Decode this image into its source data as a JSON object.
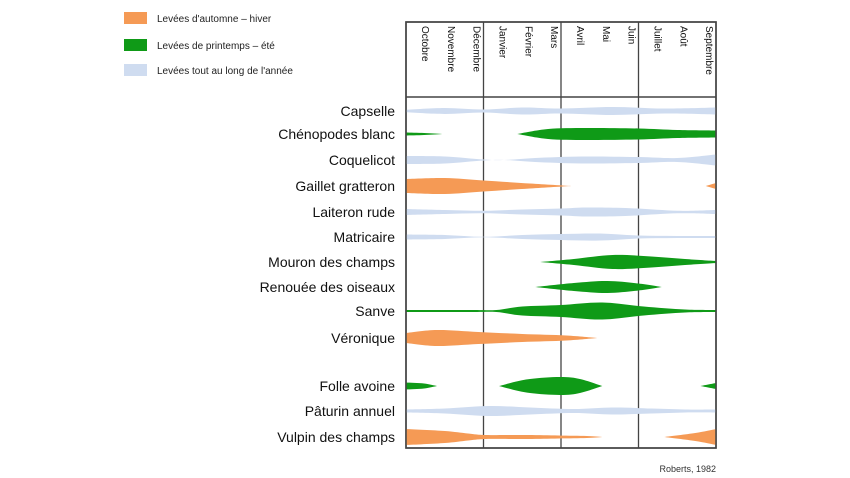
{
  "chart_data": {
    "type": "area",
    "title": "",
    "xlabel": "",
    "ylabel": "",
    "grid": true,
    "legend_placement": "top-left",
    "colors": {
      "automne_hiver": "#f59a55",
      "printemps_ete": "#0f9a17",
      "annee": "#cfdcf0",
      "grid": "#444444",
      "text": "#111111"
    },
    "legend": [
      {
        "key": "automne_hiver",
        "label": "Levées d'automne – hiver",
        "color": "#f59a55"
      },
      {
        "key": "printemps_ete",
        "label": "Levées de printemps – été",
        "color": "#0f9a17"
      },
      {
        "key": "annee",
        "label": "Levées tout au long de l'année",
        "color": "#cfdcf0"
      }
    ],
    "months": [
      "Octobre",
      "Novembre",
      "Décembre",
      "Janvier",
      "Février",
      "Mars",
      "Avril",
      "Mai",
      "Juin",
      "Juillet",
      "Août",
      "Septembre"
    ],
    "x_range": [
      0,
      12
    ],
    "species": [
      {
        "name": "Capselle",
        "bands": [
          {
            "type": "annee",
            "start": 0,
            "end": 12,
            "profile": [
              [
                0,
                2.5
              ],
              [
                1.5,
                6
              ],
              [
                3,
                3
              ],
              [
                4.5,
                7
              ],
              [
                6,
                5
              ],
              [
                8,
                8
              ],
              [
                10,
                5
              ],
              [
                12,
                7
              ]
            ]
          }
        ]
      },
      {
        "name": "Chénopodes blanc",
        "bands": [
          {
            "type": "printemps_ete",
            "start": 0,
            "end": 1.4,
            "profile": [
              [
                0,
                3
              ],
              [
                0.7,
                2
              ],
              [
                1.4,
                0
              ]
            ]
          },
          {
            "type": "printemps_ete",
            "start": 4.3,
            "end": 12,
            "profile": [
              [
                4.3,
                0
              ],
              [
                5.5,
                10
              ],
              [
                7,
                12
              ],
              [
                9,
                11
              ],
              [
                10.5,
                8
              ],
              [
                12,
                7
              ]
            ]
          }
        ]
      },
      {
        "name": "Coquelicot",
        "bands": [
          {
            "type": "annee",
            "start": 0,
            "end": 12,
            "profile": [
              [
                0,
                8
              ],
              [
                1.5,
                7
              ],
              [
                3,
                1
              ],
              [
                3.8,
                0
              ],
              [
                5,
                4
              ],
              [
                6.8,
                7
              ],
              [
                9,
                6
              ],
              [
                10.5,
                4
              ],
              [
                12,
                11
              ]
            ]
          }
        ]
      },
      {
        "name": "Gaillet gratteron",
        "bands": [
          {
            "type": "automne_hiver",
            "start": 0,
            "end": 6.4,
            "profile": [
              [
                0,
                14
              ],
              [
                1.5,
                16
              ],
              [
                3,
                11
              ],
              [
                4.8,
                5
              ],
              [
                6.4,
                0
              ]
            ]
          },
          {
            "type": "automne_hiver",
            "start": 11.6,
            "end": 12,
            "profile": [
              [
                11.6,
                0
              ],
              [
                12,
                6
              ]
            ]
          }
        ]
      },
      {
        "name": "Laiteron rude",
        "bands": [
          {
            "type": "annee",
            "start": 0,
            "end": 12,
            "profile": [
              [
                0,
                6
              ],
              [
                1.5,
                4
              ],
              [
                3,
                2.5
              ],
              [
                4.5,
                5
              ],
              [
                6,
                7
              ],
              [
                7,
                9
              ],
              [
                8.5,
                8
              ],
              [
                10.5,
                2.5
              ],
              [
                12,
                4
              ]
            ]
          }
        ]
      },
      {
        "name": "Matricaire",
        "bands": [
          {
            "type": "annee",
            "start": 0,
            "end": 12,
            "profile": [
              [
                0,
                5
              ],
              [
                1.5,
                4
              ],
              [
                3,
                0.5
              ],
              [
                4.5,
                4
              ],
              [
                6,
                6
              ],
              [
                7.5,
                7
              ],
              [
                9,
                3
              ],
              [
                10.5,
                2
              ],
              [
                12,
                2
              ]
            ]
          }
        ]
      },
      {
        "name": "Mouron des champs",
        "bands": [
          {
            "type": "printemps_ete",
            "start": 5.2,
            "end": 12,
            "profile": [
              [
                5.2,
                0
              ],
              [
                6.5,
                6
              ],
              [
                8,
                14
              ],
              [
                9.5,
                11
              ],
              [
                10.8,
                6
              ],
              [
                12,
                2
              ]
            ]
          }
        ]
      },
      {
        "name": "Renouée des oiseaux",
        "bands": [
          {
            "type": "printemps_ete",
            "start": 5.0,
            "end": 9.9,
            "profile": [
              [
                5.0,
                0
              ],
              [
                6.5,
                8
              ],
              [
                7.8,
                12
              ],
              [
                9,
                7
              ],
              [
                9.9,
                0
              ]
            ]
          }
        ]
      },
      {
        "name": "Sanve",
        "bands": [
          {
            "type": "printemps_ete",
            "start": 0,
            "end": 12,
            "profile": [
              [
                0,
                2
              ],
              [
                2.5,
                2
              ],
              [
                3.5,
                2
              ],
              [
                4.5,
                9
              ],
              [
                6,
                12
              ],
              [
                7.6,
                17
              ],
              [
                9.2,
                9
              ],
              [
                10.8,
                3
              ],
              [
                12,
                2
              ]
            ]
          }
        ]
      },
      {
        "name": "Véronique",
        "bands": [
          {
            "type": "automne_hiver",
            "start": 0,
            "end": 7.4,
            "profile": [
              [
                0,
                10
              ],
              [
                1.2,
                16
              ],
              [
                2.8,
                12
              ],
              [
                4.5,
                8
              ],
              [
                6.2,
                5
              ],
              [
                7.4,
                0
              ]
            ]
          }
        ]
      },
      {
        "name": "Folle avoine",
        "bands": [
          {
            "type": "printemps_ete",
            "start": 0,
            "end": 1.2,
            "profile": [
              [
                0,
                7
              ],
              [
                0.7,
                5
              ],
              [
                1.2,
                0
              ]
            ]
          },
          {
            "type": "printemps_ete",
            "start": 3.6,
            "end": 7.6,
            "profile": [
              [
                3.6,
                0
              ],
              [
                4.8,
                14
              ],
              [
                6.4,
                17
              ],
              [
                7.6,
                0
              ]
            ]
          },
          {
            "type": "printemps_ete",
            "start": 11.4,
            "end": 12,
            "profile": [
              [
                11.4,
                0
              ],
              [
                12,
                6
              ]
            ]
          }
        ]
      },
      {
        "name": "Pâturin annuel",
        "bands": [
          {
            "type": "annee",
            "start": 0,
            "end": 12,
            "profile": [
              [
                0,
                3
              ],
              [
                1.5,
                5
              ],
              [
                3.2,
                10
              ],
              [
                4.8,
                7
              ],
              [
                6.5,
                4
              ],
              [
                8,
                7
              ],
              [
                9.5,
                5
              ],
              [
                10.8,
                3
              ],
              [
                12,
                3
              ]
            ]
          }
        ]
      },
      {
        "name": "Vulpin des champs",
        "bands": [
          {
            "type": "automne_hiver",
            "start": 0,
            "end": 7.6,
            "profile": [
              [
                0,
                16
              ],
              [
                1.5,
                12
              ],
              [
                2.4,
                7
              ],
              [
                3.1,
                4
              ],
              [
                4.7,
                4
              ],
              [
                5.9,
                3
              ],
              [
                7,
                2
              ],
              [
                7.6,
                0
              ]
            ]
          },
          {
            "type": "automne_hiver",
            "start": 10.0,
            "end": 12,
            "profile": [
              [
                10.0,
                0
              ],
              [
                11.2,
                8
              ],
              [
                12,
                16
              ]
            ]
          }
        ]
      }
    ],
    "source": "Roberts, 1982"
  }
}
